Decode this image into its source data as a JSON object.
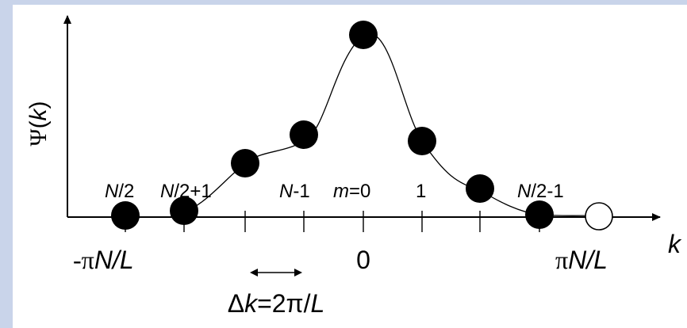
{
  "diagram": {
    "y_axis_label": {
      "symbol": "Ψ",
      "open": "(",
      "var": "k",
      "close": ")"
    },
    "x_axis_label": "k",
    "index_labels": [
      {
        "italic": "N",
        "rest": "/2"
      },
      {
        "italic": "N",
        "rest": "/2+1"
      },
      {
        "italic": "N",
        "rest": "-1"
      },
      {
        "italic": "m",
        "rest": "=0"
      },
      {
        "italic": "",
        "rest": "1"
      },
      {
        "italic": "N",
        "rest": "/2-1"
      }
    ],
    "tick_labels": {
      "left": {
        "prefix": "-π",
        "italic": "N/L"
      },
      "center": "0",
      "right": {
        "prefix": "π",
        "italic": "N/L"
      }
    },
    "spacing_label": {
      "prefix": "Δ",
      "italic": "k",
      "mid": "=2π/",
      "italic2": "L"
    }
  }
}
